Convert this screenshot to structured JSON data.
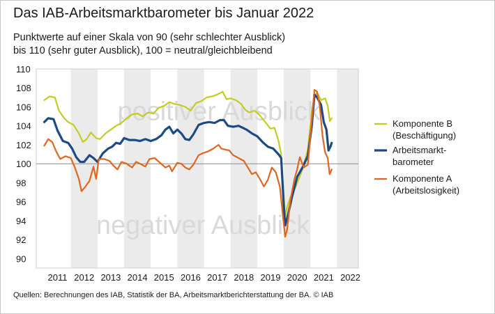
{
  "title": "Das IAB-Arbeitsmarktbarometer bis Januar 2022",
  "subtitle_line1": "Punktwerte auf einer Skala von 90 (sehr schlechter Ausblick)",
  "subtitle_line2": "bis 110 (sehr guter Ausblick), 100 = neutral/gleichbleibend",
  "source": "Quellen: Berechnungen des IAB, Statistik der BA, Arbeitsmarktberichterstattung der BA.  © IAB",
  "colors": {
    "komponente_b": "#c3cd21",
    "barometer": "#1c4a86",
    "komponente_a": "#e0661d",
    "band_grey": "#ebebeb",
    "watermark": "#d9d9d9"
  },
  "chart_data": {
    "type": "line",
    "title": "Das IAB-Arbeitsmarktbarometer bis Januar 2022",
    "xlabel": "",
    "ylabel": "",
    "ylim": [
      89,
      110
    ],
    "xlim": [
      2010.7,
      2022.8
    ],
    "yticks": [
      110,
      108,
      106,
      104,
      102,
      100,
      98,
      96,
      94,
      92,
      90
    ],
    "xticks": [
      "2011",
      "2012",
      "2013",
      "2014",
      "2015",
      "2016",
      "2017",
      "2018",
      "2019",
      "2020",
      "2021",
      "2022"
    ],
    "reference_line": 100,
    "grid": "alternating grey year bands",
    "watermark_top": "positiver Ausblick",
    "watermark_bottom": "negativer Ausblick",
    "legend_position": "right",
    "series": [
      {
        "name": "Komponente B (Beschäftigung)",
        "legend_line1": "Komponente B",
        "legend_line2": "(Beschäftigung)",
        "color": "#c3cd21",
        "points": [
          [
            2011.0,
            106.7
          ],
          [
            2011.2,
            107.1
          ],
          [
            2011.4,
            107.0
          ],
          [
            2011.55,
            105.6
          ],
          [
            2011.75,
            104.8
          ],
          [
            2011.9,
            104.4
          ],
          [
            2012.1,
            104.1
          ],
          [
            2012.3,
            103.2
          ],
          [
            2012.45,
            102.3
          ],
          [
            2012.6,
            102.6
          ],
          [
            2012.75,
            103.3
          ],
          [
            2012.95,
            102.7
          ],
          [
            2013.1,
            102.6
          ],
          [
            2013.3,
            103.2
          ],
          [
            2013.5,
            103.6
          ],
          [
            2013.7,
            104.0
          ],
          [
            2013.9,
            104.3
          ],
          [
            2014.1,
            104.8
          ],
          [
            2014.3,
            105.2
          ],
          [
            2014.5,
            105.3
          ],
          [
            2014.7,
            105.0
          ],
          [
            2014.9,
            105.4
          ],
          [
            2015.1,
            105.3
          ],
          [
            2015.3,
            105.9
          ],
          [
            2015.5,
            106.1
          ],
          [
            2015.7,
            106.5
          ],
          [
            2015.9,
            106.3
          ],
          [
            2016.1,
            106.2
          ],
          [
            2016.3,
            106.0
          ],
          [
            2016.5,
            105.6
          ],
          [
            2016.7,
            106.4
          ],
          [
            2016.9,
            106.6
          ],
          [
            2017.1,
            107.0
          ],
          [
            2017.3,
            107.1
          ],
          [
            2017.5,
            107.3
          ],
          [
            2017.7,
            107.6
          ],
          [
            2017.85,
            106.8
          ],
          [
            2018.0,
            106.9
          ],
          [
            2018.2,
            106.7
          ],
          [
            2018.4,
            106.3
          ],
          [
            2018.55,
            105.7
          ],
          [
            2018.7,
            105.4
          ],
          [
            2018.9,
            105.6
          ],
          [
            2019.1,
            105.1
          ],
          [
            2019.3,
            104.4
          ],
          [
            2019.5,
            103.7
          ],
          [
            2019.65,
            103.8
          ],
          [
            2019.8,
            102.4
          ],
          [
            2019.9,
            101.0
          ],
          [
            2020.0,
            96.5
          ],
          [
            2020.05,
            94.4
          ],
          [
            2020.12,
            95.4
          ],
          [
            2020.25,
            96.5
          ],
          [
            2020.45,
            97.6
          ],
          [
            2020.7,
            99.4
          ],
          [
            2020.9,
            101.5
          ],
          [
            2021.05,
            105.4
          ],
          [
            2021.15,
            107.1
          ],
          [
            2021.25,
            107.5
          ],
          [
            2021.4,
            106.7
          ],
          [
            2021.55,
            106.9
          ],
          [
            2021.65,
            106.1
          ],
          [
            2021.73,
            104.5
          ],
          [
            2021.8,
            104.8
          ]
        ]
      },
      {
        "name": "Arbeitsmarktbarometer",
        "legend_line1": "Arbeitsmarkt-",
        "legend_line2": "barometer",
        "color": "#1c4a86",
        "points": [
          [
            2011.0,
            104.4
          ],
          [
            2011.15,
            104.8
          ],
          [
            2011.35,
            104.7
          ],
          [
            2011.5,
            103.5
          ],
          [
            2011.7,
            102.4
          ],
          [
            2011.9,
            102.2
          ],
          [
            2012.05,
            101.6
          ],
          [
            2012.2,
            100.7
          ],
          [
            2012.35,
            100.2
          ],
          [
            2012.5,
            100.2
          ],
          [
            2012.7,
            100.9
          ],
          [
            2012.85,
            100.6
          ],
          [
            2013.0,
            100.2
          ],
          [
            2013.2,
            101.1
          ],
          [
            2013.4,
            101.6
          ],
          [
            2013.55,
            101.8
          ],
          [
            2013.7,
            102.2
          ],
          [
            2013.85,
            102.1
          ],
          [
            2014.0,
            102.7
          ],
          [
            2014.2,
            102.5
          ],
          [
            2014.4,
            102.5
          ],
          [
            2014.6,
            102.4
          ],
          [
            2014.8,
            102.6
          ],
          [
            2015.0,
            102.4
          ],
          [
            2015.2,
            102.6
          ],
          [
            2015.4,
            103.0
          ],
          [
            2015.55,
            103.6
          ],
          [
            2015.7,
            103.9
          ],
          [
            2015.85,
            103.2
          ],
          [
            2016.0,
            103.6
          ],
          [
            2016.15,
            103.2
          ],
          [
            2016.3,
            102.6
          ],
          [
            2016.45,
            102.5
          ],
          [
            2016.6,
            103.1
          ],
          [
            2016.8,
            104.1
          ],
          [
            2017.0,
            104.3
          ],
          [
            2017.2,
            104.4
          ],
          [
            2017.4,
            104.3
          ],
          [
            2017.6,
            104.6
          ],
          [
            2017.75,
            104.6
          ],
          [
            2017.9,
            104.0
          ],
          [
            2018.1,
            103.9
          ],
          [
            2018.3,
            104.0
          ],
          [
            2018.45,
            103.8
          ],
          [
            2018.6,
            103.6
          ],
          [
            2018.8,
            103.2
          ],
          [
            2019.0,
            102.9
          ],
          [
            2019.2,
            102.3
          ],
          [
            2019.4,
            101.8
          ],
          [
            2019.6,
            101.6
          ],
          [
            2019.8,
            101.0
          ],
          [
            2019.9,
            100.6
          ],
          [
            2020.0,
            95.5
          ],
          [
            2020.05,
            93.5
          ],
          [
            2020.15,
            94.5
          ],
          [
            2020.3,
            96.4
          ],
          [
            2020.5,
            98.6
          ],
          [
            2020.7,
            99.6
          ],
          [
            2020.9,
            100.8
          ],
          [
            2021.05,
            104.0
          ],
          [
            2021.15,
            107.3
          ],
          [
            2021.25,
            107.0
          ],
          [
            2021.4,
            106.2
          ],
          [
            2021.5,
            104.4
          ],
          [
            2021.6,
            103.6
          ],
          [
            2021.68,
            101.4
          ],
          [
            2021.75,
            101.8
          ],
          [
            2021.8,
            102.2
          ]
        ]
      },
      {
        "name": "Komponente A (Arbeitslosigkeit)",
        "legend_line1": "Komponente A",
        "legend_line2": "(Arbeitslosigkeit)",
        "color": "#e0661d",
        "points": [
          [
            2011.0,
            101.9
          ],
          [
            2011.15,
            102.6
          ],
          [
            2011.3,
            102.3
          ],
          [
            2011.45,
            101.3
          ],
          [
            2011.6,
            100.5
          ],
          [
            2011.8,
            100.8
          ],
          [
            2012.0,
            100.6
          ],
          [
            2012.15,
            99.6
          ],
          [
            2012.3,
            98.4
          ],
          [
            2012.4,
            97.1
          ],
          [
            2012.55,
            97.6
          ],
          [
            2012.7,
            98.2
          ],
          [
            2012.85,
            99.7
          ],
          [
            2012.95,
            98.4
          ],
          [
            2013.05,
            100.5
          ],
          [
            2013.25,
            100.5
          ],
          [
            2013.45,
            100.3
          ],
          [
            2013.6,
            99.8
          ],
          [
            2013.75,
            99.4
          ],
          [
            2013.9,
            100.2
          ],
          [
            2014.1,
            100.0
          ],
          [
            2014.3,
            99.6
          ],
          [
            2014.45,
            100.2
          ],
          [
            2014.6,
            100.0
          ],
          [
            2014.8,
            99.7
          ],
          [
            2014.95,
            100.5
          ],
          [
            2015.15,
            100.6
          ],
          [
            2015.35,
            100.1
          ],
          [
            2015.55,
            99.6
          ],
          [
            2015.7,
            99.8
          ],
          [
            2015.8,
            99.2
          ],
          [
            2016.0,
            100.1
          ],
          [
            2016.15,
            100.0
          ],
          [
            2016.3,
            99.6
          ],
          [
            2016.45,
            99.4
          ],
          [
            2016.6,
            99.9
          ],
          [
            2016.8,
            100.9
          ],
          [
            2016.95,
            101.1
          ],
          [
            2017.15,
            101.3
          ],
          [
            2017.35,
            101.6
          ],
          [
            2017.55,
            102.0
          ],
          [
            2017.65,
            101.6
          ],
          [
            2017.8,
            101.5
          ],
          [
            2017.95,
            101.4
          ],
          [
            2018.1,
            100.9
          ],
          [
            2018.3,
            100.6
          ],
          [
            2018.5,
            100.3
          ],
          [
            2018.65,
            99.6
          ],
          [
            2018.8,
            98.9
          ],
          [
            2018.95,
            99.1
          ],
          [
            2019.1,
            98.4
          ],
          [
            2019.25,
            97.6
          ],
          [
            2019.4,
            98.3
          ],
          [
            2019.55,
            99.6
          ],
          [
            2019.7,
            99.1
          ],
          [
            2019.85,
            97.6
          ],
          [
            2020.0,
            93.6
          ],
          [
            2020.05,
            92.3
          ],
          [
            2020.12,
            93.0
          ],
          [
            2020.25,
            96.2
          ],
          [
            2020.4,
            98.4
          ],
          [
            2020.5,
            99.4
          ],
          [
            2020.6,
            100.7
          ],
          [
            2020.75,
            99.6
          ],
          [
            2020.9,
            99.9
          ],
          [
            2021.05,
            104.6
          ],
          [
            2021.15,
            107.8
          ],
          [
            2021.25,
            107.6
          ],
          [
            2021.35,
            106.1
          ],
          [
            2021.45,
            103.0
          ],
          [
            2021.55,
            101.2
          ],
          [
            2021.65,
            100.6
          ],
          [
            2021.72,
            98.9
          ],
          [
            2021.8,
            99.4
          ]
        ]
      }
    ]
  }
}
